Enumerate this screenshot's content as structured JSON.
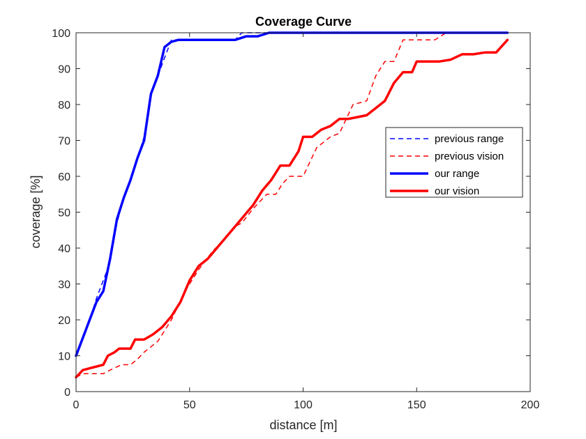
{
  "chart_data": {
    "type": "line",
    "title": "Coverage Curve",
    "xlabel": "distance [m]",
    "ylabel": "coverage [%]",
    "xlim": [
      0,
      200
    ],
    "ylim": [
      0,
      100
    ],
    "xticks": [
      0,
      50,
      100,
      150,
      200
    ],
    "yticks": [
      0,
      10,
      20,
      30,
      40,
      50,
      60,
      70,
      80,
      90,
      100
    ],
    "grid": false,
    "legend_position": "right",
    "series": [
      {
        "name": "previous range",
        "color": "#0000ff",
        "style": "dashed",
        "x": [
          0,
          3,
          6,
          9,
          12,
          15,
          18,
          21,
          24,
          27,
          30,
          33,
          36,
          39,
          42,
          45,
          50,
          60,
          70,
          73,
          80,
          85,
          90,
          100,
          120,
          150,
          170,
          190
        ],
        "y": [
          10,
          15,
          20,
          26,
          31,
          36,
          47,
          54,
          59,
          65,
          71,
          83,
          88,
          93,
          98,
          98,
          98,
          98,
          98,
          100,
          100,
          100,
          100,
          100,
          100,
          100,
          100,
          100
        ]
      },
      {
        "name": "previous vision",
        "color": "#ff0000",
        "style": "dashed",
        "x": [
          0,
          3,
          12,
          15,
          20,
          24,
          27,
          30,
          36,
          42,
          48,
          54,
          60,
          66,
          70,
          73,
          78,
          84,
          88,
          91,
          94,
          100,
          106,
          112,
          116,
          122,
          128,
          132,
          136,
          140,
          144,
          152,
          158,
          163,
          170,
          180,
          190
        ],
        "y": [
          4,
          5,
          5,
          6,
          7.5,
          7.5,
          9,
          11,
          14,
          20,
          28,
          34,
          39,
          43,
          46,
          47,
          51,
          55,
          55,
          58,
          60,
          60,
          68,
          71,
          72,
          80,
          81,
          88,
          92,
          92,
          98,
          98,
          98,
          100,
          100,
          100,
          100
        ]
      },
      {
        "name": "our range",
        "color": "#0000ff",
        "style": "solid",
        "x": [
          0,
          3,
          6,
          9,
          12,
          15,
          18,
          21,
          24,
          27,
          30,
          33,
          36,
          39,
          42,
          45,
          50,
          60,
          70,
          75,
          80,
          85,
          90,
          100,
          120,
          150,
          170,
          190
        ],
        "y": [
          10,
          15,
          20,
          25,
          28,
          37,
          48,
          54,
          59,
          65,
          70,
          83,
          88,
          96,
          97.5,
          98,
          98,
          98,
          98,
          99,
          99,
          100,
          100,
          100,
          100,
          100,
          100,
          100
        ]
      },
      {
        "name": "our vision",
        "color": "#ff0000",
        "style": "solid",
        "x": [
          0,
          3,
          6,
          9,
          12,
          14,
          17,
          19,
          24,
          26,
          30,
          34,
          38,
          42,
          46,
          50,
          54,
          58,
          62,
          66,
          70,
          74,
          78,
          82,
          86,
          90,
          94,
          98,
          100,
          104,
          108,
          112,
          116,
          120,
          124,
          128,
          132,
          136,
          140,
          144,
          148,
          150,
          155,
          160,
          165,
          170,
          175,
          180,
          185,
          190
        ],
        "y": [
          4,
          6,
          6.5,
          7,
          7.5,
          10,
          11,
          12,
          12,
          14.5,
          14.5,
          16,
          18,
          21,
          25,
          31,
          35,
          37,
          40,
          43,
          46,
          49,
          52,
          56,
          59,
          63,
          63,
          67,
          71,
          71,
          73,
          74,
          76,
          76,
          76.5,
          77,
          79,
          81,
          86,
          89,
          89,
          92,
          92,
          92,
          92.5,
          94,
          94,
          94.5,
          94.5,
          98
        ]
      }
    ]
  }
}
